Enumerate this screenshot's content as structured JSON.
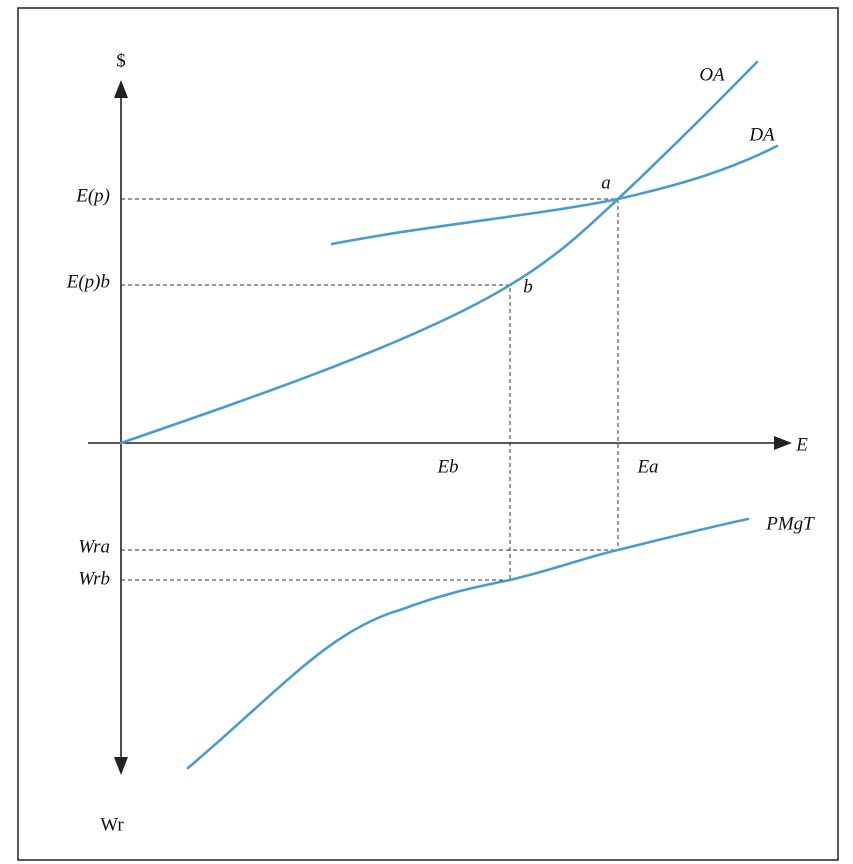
{
  "axes": {
    "y_top": "$",
    "y_bottom": "Wr",
    "x": "E"
  },
  "left_labels": [
    "E(p)",
    "E(p)b",
    "Wra",
    "Wrb"
  ],
  "bottom_labels": [
    "Eb",
    "Ea"
  ],
  "curves": [
    "OA",
    "DA",
    "PMgT"
  ],
  "points": [
    "a",
    "b"
  ]
}
